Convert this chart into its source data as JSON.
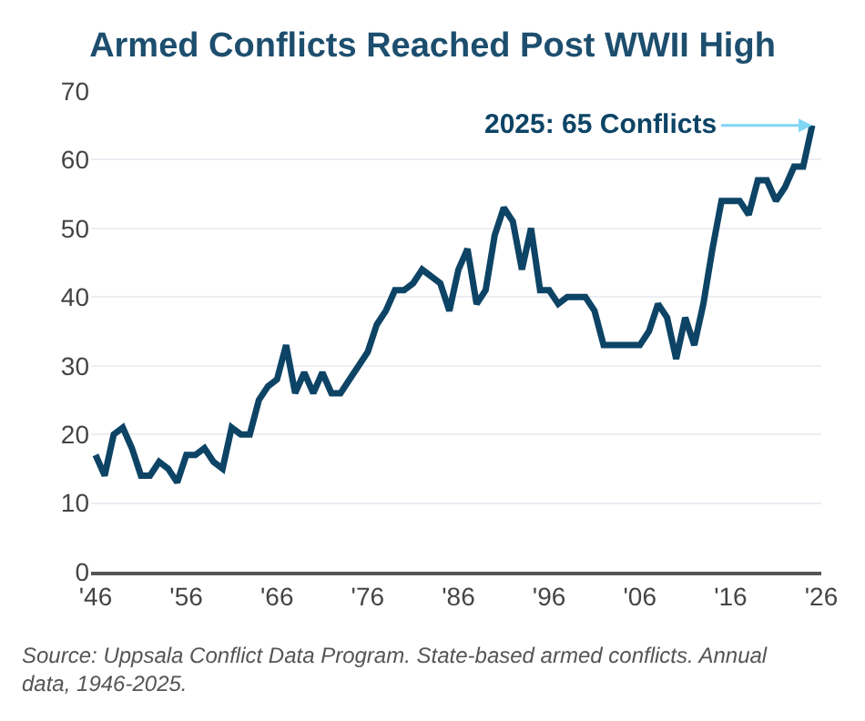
{
  "chart_data": {
    "type": "line",
    "title": "Armed Conflicts Reached Post WWII High",
    "x": [
      1946,
      1947,
      1948,
      1949,
      1950,
      1951,
      1952,
      1953,
      1954,
      1955,
      1956,
      1957,
      1958,
      1959,
      1960,
      1961,
      1962,
      1963,
      1964,
      1965,
      1966,
      1967,
      1968,
      1969,
      1970,
      1971,
      1972,
      1973,
      1974,
      1975,
      1976,
      1977,
      1978,
      1979,
      1980,
      1981,
      1982,
      1983,
      1984,
      1985,
      1986,
      1987,
      1988,
      1989,
      1990,
      1991,
      1992,
      1993,
      1994,
      1995,
      1996,
      1997,
      1998,
      1999,
      2000,
      2001,
      2002,
      2003,
      2004,
      2005,
      2006,
      2007,
      2008,
      2009,
      2010,
      2011,
      2012,
      2013,
      2014,
      2015,
      2016,
      2017,
      2018,
      2019,
      2020,
      2021,
      2022,
      2023,
      2024,
      2025
    ],
    "series": [
      {
        "color": "#0d4466",
        "values": [
          17,
          14,
          20,
          21,
          18,
          14,
          14,
          16,
          15,
          13,
          17,
          17,
          18,
          16,
          15,
          21,
          20,
          20,
          25,
          27,
          28,
          33,
          26,
          29,
          26,
          29,
          26,
          26,
          28,
          30,
          32,
          36,
          38,
          41,
          41,
          42,
          44,
          43,
          42,
          38,
          44,
          47,
          39,
          41,
          49,
          53,
          51,
          44,
          50,
          41,
          41,
          39,
          40,
          40,
          40,
          38,
          33,
          33,
          33,
          33,
          33,
          35,
          39,
          37,
          31,
          37,
          33,
          39,
          47,
          54,
          54,
          54,
          52,
          57,
          57,
          54,
          56,
          59,
          59,
          65
        ]
      }
    ],
    "xlim": [
      1945.5,
      2026
    ],
    "xticks": [
      {
        "value": 1946,
        "label": "'46"
      },
      {
        "value": 1956,
        "label": "'56"
      },
      {
        "value": 1966,
        "label": "'66"
      },
      {
        "value": 1976,
        "label": "'76"
      },
      {
        "value": 1986,
        "label": "'86"
      },
      {
        "value": 1996,
        "label": "'96"
      },
      {
        "value": 2006,
        "label": "'06"
      },
      {
        "value": 2016,
        "label": "'16"
      },
      {
        "value": 2026,
        "label": "'26"
      }
    ],
    "ylim": [
      0,
      70
    ],
    "yticks": [
      0,
      10,
      20,
      30,
      40,
      50,
      60,
      70
    ],
    "grid": "y",
    "marker": "none",
    "line_style": "solid",
    "annotations": [
      {
        "text": "2025: 65 Conflicts",
        "x": 2025,
        "y": 65
      },
      "Source: Uppsala Conflict Data Program. State-based armed conflicts. Annual data, 1946-2025."
    ]
  }
}
